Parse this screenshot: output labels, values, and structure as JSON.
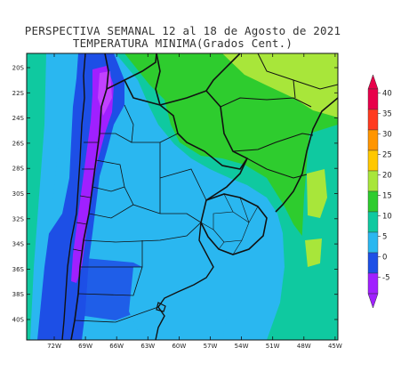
{
  "header": {
    "title_line1": "PERSPECTIVA SEMANAL  12 al 18 de Agosto de 2021",
    "title_line2": "TEMPERATURA MINIMA(Grados Cent.)"
  },
  "map": {
    "lat_labels": [
      "20S",
      "22S",
      "24S",
      "26S",
      "28S",
      "30S",
      "32S",
      "34S",
      "36S",
      "38S",
      "40S"
    ],
    "lon_labels": [
      "72W",
      "69W",
      "66W",
      "63W",
      "60W",
      "57W",
      "54W",
      "51W",
      "48W",
      "45W"
    ]
  },
  "colorbar": {
    "labels": [
      "40",
      "35",
      "30",
      "25",
      "20",
      "15",
      "10",
      "5",
      "0",
      "-5"
    ],
    "colors": [
      "#e8004a",
      "#ff3a20",
      "#ff9500",
      "#ffc800",
      "#a8e63a",
      "#2ecc2e",
      "#0fc9a0",
      "#2ab7f0",
      "#1d4fe6",
      "#a020ff"
    ]
  }
}
